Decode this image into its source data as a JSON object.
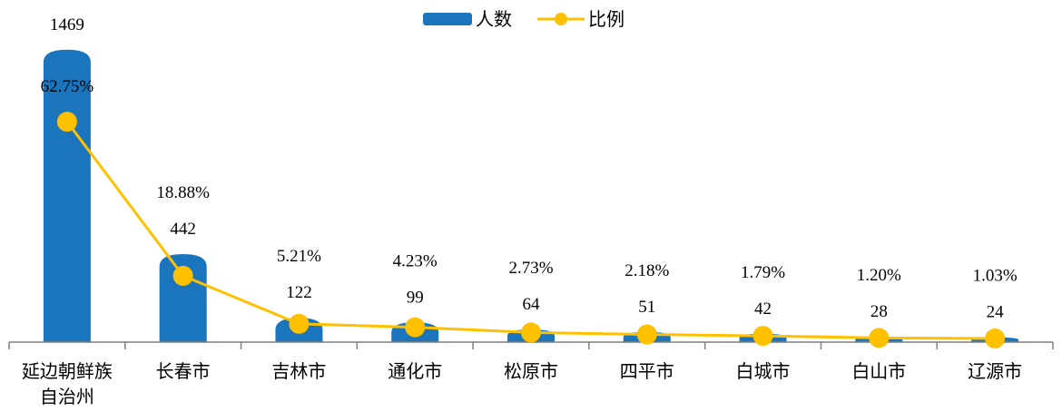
{
  "chart_data": {
    "type": "bar_line",
    "categories": [
      "延边朝鲜族自治州",
      "长春市",
      "吉林市",
      "通化市",
      "松原市",
      "四平市",
      "白城市",
      "白山市",
      "辽源市"
    ],
    "series": [
      {
        "name": "人数",
        "type": "bar",
        "color": "#1b75bc",
        "values": [
          1469,
          442,
          122,
          99,
          64,
          51,
          42,
          28,
          24
        ]
      },
      {
        "name": "比例",
        "type": "line",
        "axis": "y2",
        "color": "#ffc000",
        "values": [
          62.75,
          18.88,
          5.21,
          4.23,
          2.73,
          2.18,
          1.79,
          1.2,
          1.03
        ],
        "value_labels": [
          "62.75%",
          "18.88%",
          "5.21%",
          "4.23%",
          "2.73%",
          "2.18%",
          "1.79%",
          "1.20%",
          "1.03%"
        ]
      }
    ],
    "ylim": [
      0,
      1500
    ],
    "y2lim": [
      0,
      85
    ],
    "legend": "top"
  }
}
